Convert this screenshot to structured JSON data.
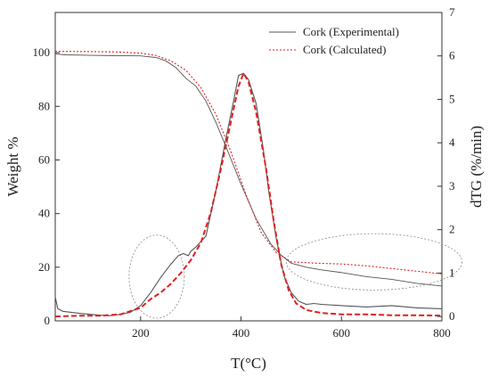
{
  "chart_data": {
    "type": "line",
    "xlabel": "T(°C)",
    "ylabel_left": "Weight %",
    "ylabel_right": "dTG (%/min)",
    "xlim": [
      30,
      800
    ],
    "ylim_left": [
      0,
      115
    ],
    "ylim_right": [
      -0.1,
      7
    ],
    "x_ticks": [
      200,
      400,
      600,
      800
    ],
    "y_left_ticks": [
      0,
      20,
      40,
      60,
      80,
      100
    ],
    "y_right_ticks": [
      0,
      1,
      2,
      3,
      4,
      5,
      6,
      7
    ],
    "legend_position": "top-right",
    "grid": false,
    "series": [
      {
        "name": "Cork (Experimental)",
        "color": "#555555",
        "style": "solid",
        "weight": {
          "x": [
            30,
            50,
            100,
            150,
            200,
            230,
            250,
            270,
            290,
            310,
            330,
            350,
            370,
            400,
            430,
            460,
            480,
            500,
            530,
            560,
            600,
            650,
            700,
            750,
            800
          ],
          "y": [
            99.5,
            99.2,
            99.0,
            98.9,
            98.8,
            98.2,
            97.0,
            94.5,
            90.5,
            87.5,
            82.0,
            74.0,
            65.0,
            51.0,
            38.0,
            28.5,
            24.5,
            21.5,
            20.0,
            19.0,
            18.0,
            16.5,
            15.5,
            14.0,
            13.0
          ]
        },
        "dtg": {
          "x": [
            30,
            35,
            45,
            60,
            80,
            100,
            120,
            140,
            160,
            180,
            200,
            220,
            240,
            260,
            275,
            285,
            295,
            300,
            310,
            330,
            350,
            370,
            385,
            395,
            405,
            415,
            430,
            445,
            455,
            470,
            485,
            500,
            515,
            530,
            545,
            560,
            600,
            650,
            700,
            750,
            800
          ],
          "y": [
            0.45,
            0.18,
            0.12,
            0.1,
            0.07,
            0.05,
            0.03,
            0.02,
            0.05,
            0.1,
            0.25,
            0.55,
            0.9,
            1.2,
            1.4,
            1.45,
            1.4,
            1.5,
            1.6,
            1.85,
            2.9,
            4.1,
            4.95,
            5.55,
            5.6,
            5.45,
            4.9,
            3.8,
            2.9,
            1.8,
            0.95,
            0.55,
            0.35,
            0.28,
            0.3,
            0.28,
            0.25,
            0.22,
            0.25,
            0.2,
            0.18
          ]
        }
      },
      {
        "name": "Cork (Calculated)",
        "color": "#e02020",
        "style": "dashed",
        "weight": {
          "x": [
            30,
            100,
            150,
            200,
            230,
            260,
            290,
            320,
            350,
            380,
            410,
            440,
            470,
            500,
            550,
            600,
            650,
            700,
            750,
            800
          ],
          "y": [
            100.5,
            100.4,
            100.3,
            99.8,
            99.0,
            97.0,
            93.5,
            87.0,
            77.0,
            63.0,
            47.0,
            33.0,
            25.5,
            22.0,
            21.5,
            21.2,
            20.5,
            19.5,
            18.5,
            17.5
          ]
        },
        "dtg": {
          "x": [
            30,
            80,
            120,
            160,
            200,
            220,
            240,
            260,
            280,
            300,
            320,
            340,
            360,
            380,
            395,
            405,
            415,
            430,
            450,
            465,
            480,
            495,
            510,
            530,
            560,
            600,
            650,
            700,
            750,
            800
          ],
          "y": [
            0.0,
            0.02,
            0.02,
            0.05,
            0.2,
            0.4,
            0.55,
            0.75,
            1.0,
            1.3,
            1.7,
            2.4,
            3.4,
            4.5,
            5.3,
            5.6,
            5.4,
            4.7,
            3.4,
            2.2,
            1.2,
            0.6,
            0.3,
            0.15,
            0.08,
            0.05,
            0.05,
            0.03,
            0.03,
            0.02
          ]
        }
      }
    ],
    "annotations": [
      {
        "type": "dotted-ellipse",
        "cx": 232,
        "cy": 16.5,
        "rx": 55,
        "ry": 15.5
      },
      {
        "type": "dotted-ellipse",
        "cx": 665,
        "cy": 22,
        "rx": 175,
        "ry": 10.5
      }
    ]
  }
}
